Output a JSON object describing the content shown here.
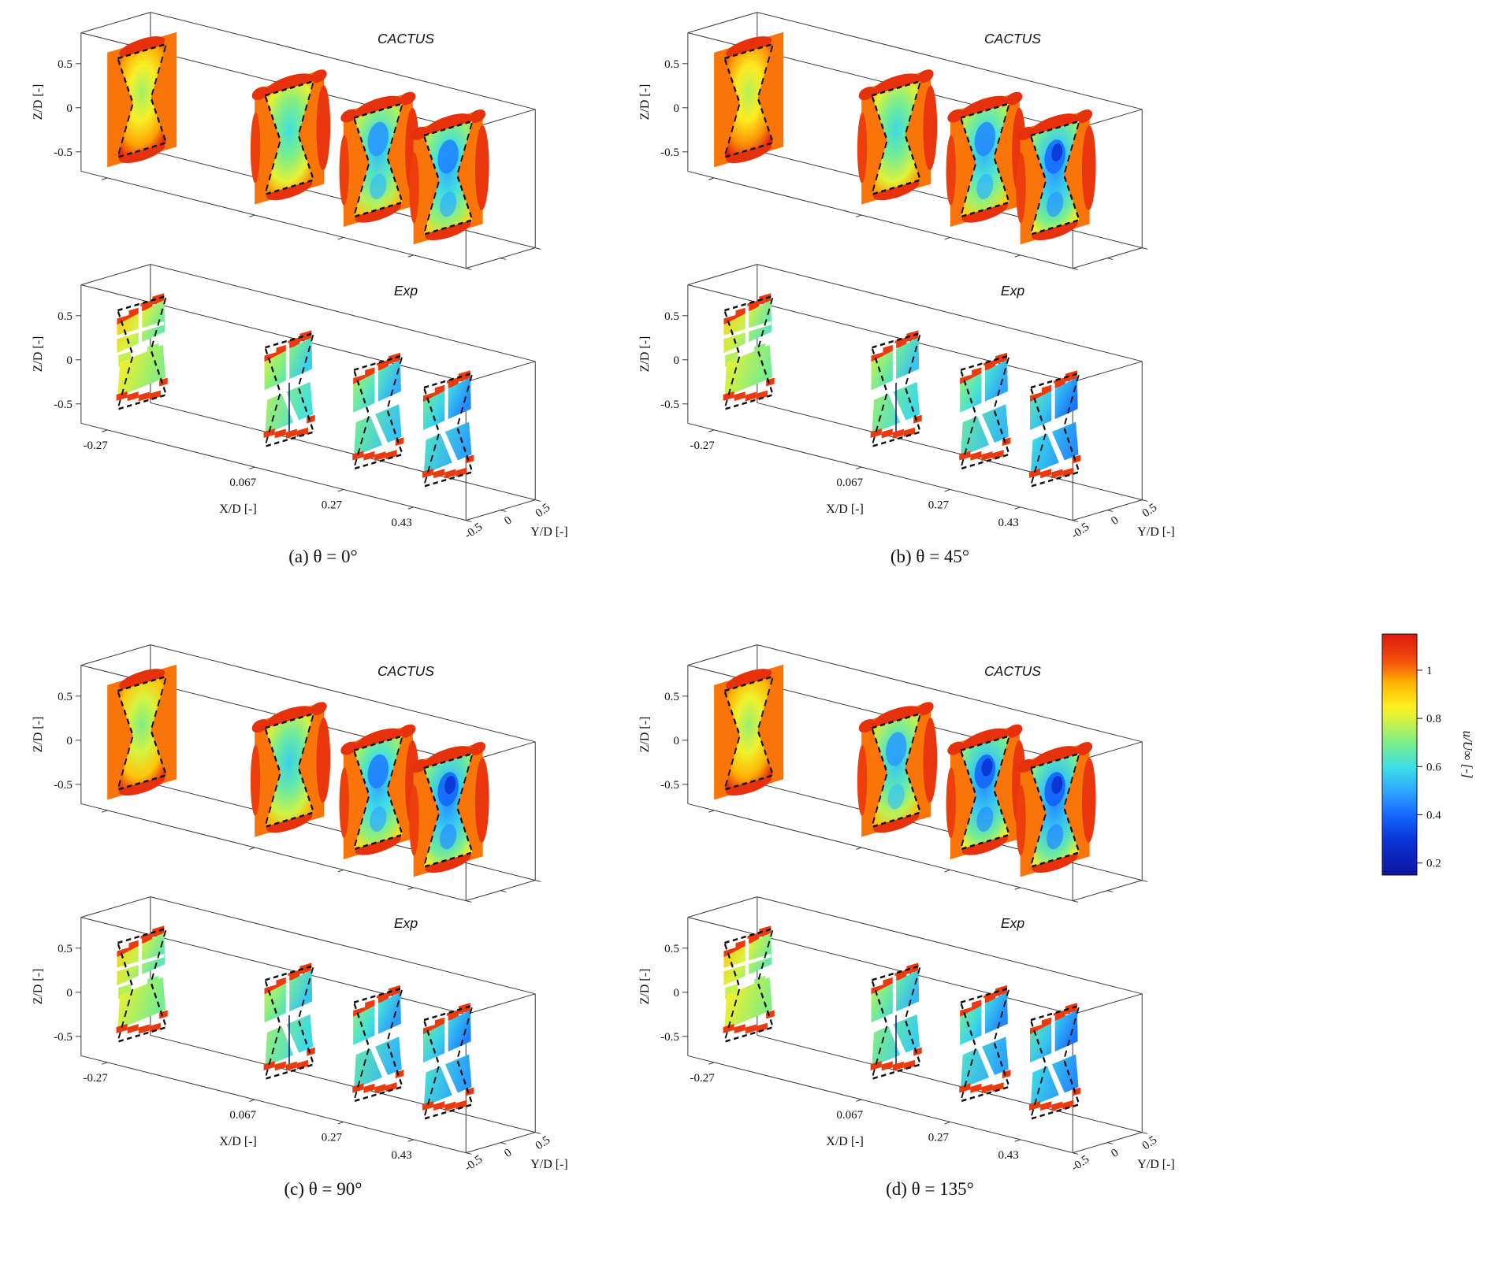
{
  "chart_data": {
    "type": "heatmap",
    "subtype": "3d-slice-contour-comparison",
    "subplot_titles": [
      "CACTUS",
      "Exp"
    ],
    "axes": {
      "x_label": "X/D [-]",
      "y_label": "Y/D [-]",
      "z_label": "Z/D [-]",
      "x_ticks": [
        -0.27,
        0.067,
        0.27,
        0.43
      ],
      "x_tick_labels": [
        "-0.27",
        "0.067",
        "0.27",
        "0.43"
      ],
      "y_ticks": [
        -0.5,
        0,
        0.5
      ],
      "y_tick_labels": [
        "-0.5",
        "0",
        "0.5"
      ],
      "z_ticks": [
        -0.5,
        0,
        0.5
      ],
      "z_tick_labels": [
        "-0.5",
        "0",
        "0.5"
      ]
    },
    "slice_stations_xD": [
      -0.27,
      0.067,
      0.27,
      0.43
    ],
    "colorbar": {
      "label": "u/U∞ [-]",
      "ticks": [
        1,
        0.8,
        0.6,
        0.4,
        0.2
      ],
      "tick_labels": [
        "1",
        "0.8",
        "0.6",
        "0.4",
        "0.2"
      ],
      "vmin": 0.15,
      "vmax": 1.15,
      "colormap": [
        [
          0.15,
          "#0b1597"
        ],
        [
          0.2,
          "#0d1fb5"
        ],
        [
          0.3,
          "#0936d8"
        ],
        [
          0.4,
          "#1568ff"
        ],
        [
          0.5,
          "#2fa8ff"
        ],
        [
          0.6,
          "#3fe0e4"
        ],
        [
          0.7,
          "#7dee87"
        ],
        [
          0.8,
          "#d8f23f"
        ],
        [
          0.85,
          "#fff021"
        ],
        [
          0.95,
          "#ffb103"
        ],
        [
          1.0,
          "#f9750a"
        ],
        [
          1.05,
          "#f1480c"
        ],
        [
          1.15,
          "#dd1a0e"
        ]
      ]
    },
    "panels": [
      {
        "id": "a",
        "caption": "(a) θ = 0°",
        "theta_deg": 0,
        "cactus_mean_uU": [
          0.84,
          0.7,
          0.64,
          0.61
        ],
        "exp_mean_uU": [
          0.8,
          0.7,
          0.64,
          0.58
        ]
      },
      {
        "id": "b",
        "caption": "(b) θ = 45°",
        "theta_deg": 45,
        "cactus_mean_uU": [
          0.86,
          0.69,
          0.62,
          0.57
        ],
        "exp_mean_uU": [
          0.78,
          0.68,
          0.62,
          0.55
        ]
      },
      {
        "id": "c",
        "caption": "(c) θ = 90°",
        "theta_deg": 90,
        "cactus_mean_uU": [
          0.8,
          0.67,
          0.6,
          0.56
        ],
        "exp_mean_uU": [
          0.78,
          0.68,
          0.61,
          0.57
        ]
      },
      {
        "id": "d",
        "caption": "(d) θ = 135°",
        "theta_deg": 135,
        "cactus_mean_uU": [
          0.83,
          0.65,
          0.56,
          0.55
        ],
        "exp_mean_uU": [
          0.8,
          0.66,
          0.58,
          0.55
        ]
      }
    ]
  }
}
